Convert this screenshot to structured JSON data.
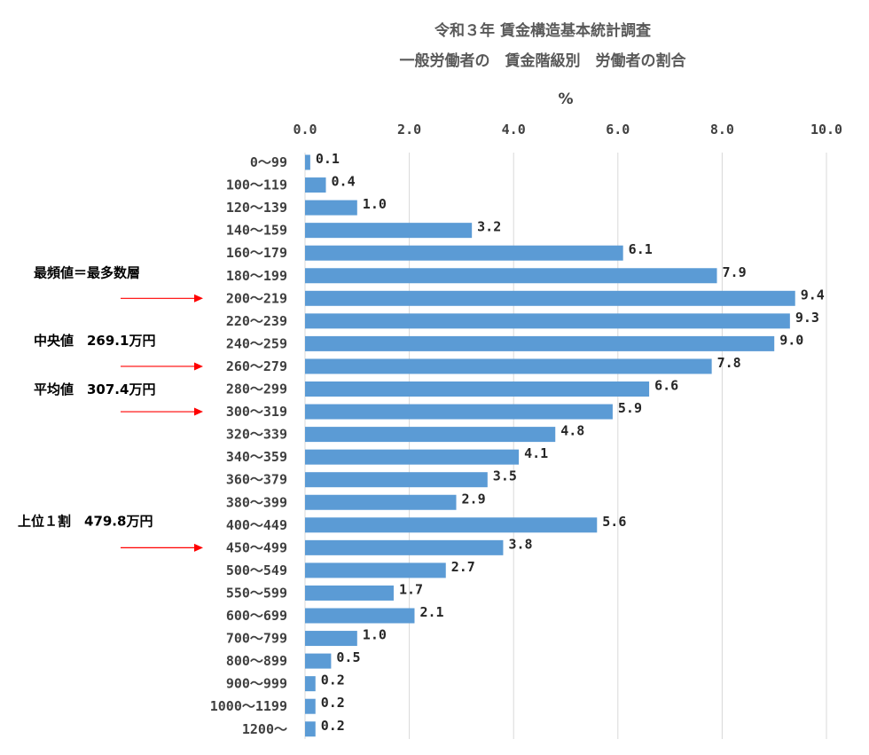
{
  "chart_data": {
    "type": "bar",
    "orientation": "horizontal",
    "title_lines": [
      "令和３年 賃金構造基本統計調査",
      "一般労働者の　賃金階級別　労働者の割合"
    ],
    "unit_label": "%",
    "xlim": [
      0,
      10
    ],
    "x_ticks": [
      "0.0",
      "2.0",
      "4.0",
      "6.0",
      "8.0",
      "10.0"
    ],
    "categories": [
      "0～99",
      "100～119",
      "120～139",
      "140～159",
      "160～179",
      "180～199",
      "200～219",
      "220～239",
      "240～259",
      "260～279",
      "280～299",
      "300～319",
      "320～339",
      "340～359",
      "360～379",
      "380～399",
      "400～449",
      "450～499",
      "500～549",
      "550～599",
      "600～699",
      "700～799",
      "800～899",
      "900～999",
      "1000～1199",
      "1200～"
    ],
    "values": [
      0.1,
      0.4,
      1.0,
      3.2,
      6.1,
      7.9,
      9.4,
      9.3,
      9.0,
      7.8,
      6.6,
      5.9,
      4.8,
      4.1,
      3.5,
      2.9,
      5.6,
      3.8,
      2.7,
      1.7,
      2.1,
      1.0,
      0.5,
      0.2,
      0.2,
      0.2
    ],
    "value_labels": [
      "0.1",
      "0.4",
      "1.0",
      "3.2",
      "6.1",
      "7.9",
      "9.4",
      "9.3",
      "9.0",
      "7.8",
      "6.6",
      "5.9",
      "4.8",
      "4.1",
      "3.5",
      "2.9",
      "5.6",
      "3.8",
      "2.7",
      "1.7",
      "2.1",
      "1.0",
      "0.5",
      "0.2",
      "0.2",
      "0.2"
    ],
    "grid": true,
    "bar_color": "#5b9bd5",
    "arrow_color": "#ff0000",
    "annotations": [
      {
        "text": "最頻値＝最多数層",
        "points_to": "200～219"
      },
      {
        "text": "中央値　269.1万円",
        "points_to": "260～279"
      },
      {
        "text": "平均値　307.4万円",
        "points_to": "300～319"
      },
      {
        "text": "上位１割　479.8万円",
        "points_to": "450～499"
      }
    ]
  }
}
